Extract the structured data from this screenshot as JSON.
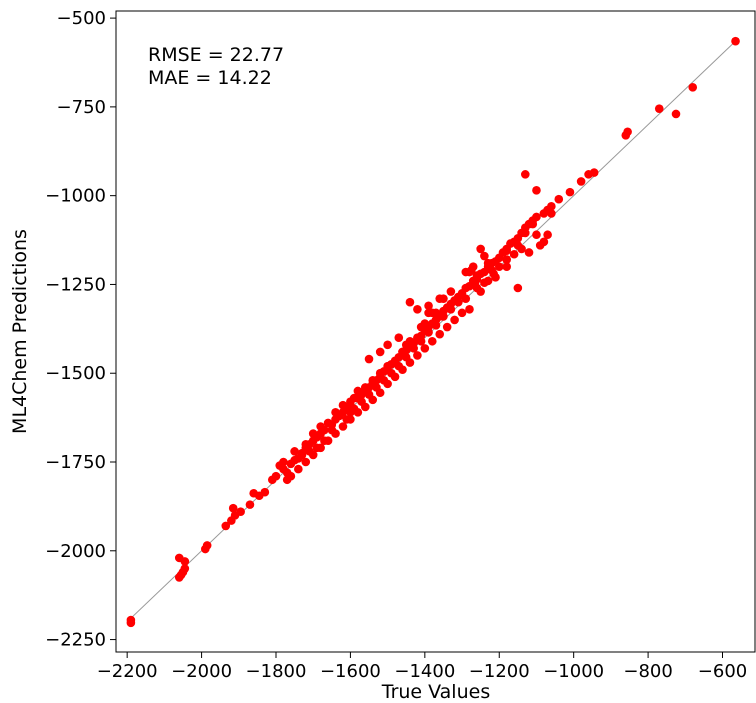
{
  "chart_data": {
    "type": "scatter",
    "title": "",
    "xlabel": "True Values",
    "ylabel": "ML4Chem Predictions",
    "xlim": [
      -2230,
      -510
    ],
    "ylim": [
      -2285,
      -480
    ],
    "x_ticks": [
      -2200,
      -2000,
      -1800,
      -1600,
      -1400,
      -1200,
      -1000,
      -800,
      -600
    ],
    "y_ticks": [
      -500,
      -750,
      -1000,
      -1250,
      -1500,
      -1750,
      -2000,
      -2250
    ],
    "x_tick_labels": [
      "−2200",
      "−2000",
      "−1800",
      "−1600",
      "−1400",
      "−1200",
      "−1000",
      "−800",
      "−600"
    ],
    "y_tick_labels": [
      "−500",
      "−750",
      "−1000",
      "−1250",
      "−1500",
      "−1750",
      "−2000",
      "−2250"
    ],
    "grid": false,
    "legend": "none",
    "marker_color": "#ff0000",
    "identity_line_color": "#999999",
    "annotations": [
      "RMSE = 22.77",
      "MAE = 14.22"
    ],
    "series": [
      {
        "points": [
          [
            -2190,
            -2195
          ],
          [
            -2190,
            -2203
          ],
          [
            -2060,
            -2020
          ],
          [
            -2045,
            -2030
          ],
          [
            -2060,
            -2075
          ],
          [
            -2050,
            -2060
          ],
          [
            -2045,
            -2050
          ],
          [
            -2055,
            -2068
          ],
          [
            -1985,
            -1985
          ],
          [
            -1990,
            -1995
          ],
          [
            -1935,
            -1930
          ],
          [
            -1920,
            -1915
          ],
          [
            -1910,
            -1900
          ],
          [
            -1915,
            -1880
          ],
          [
            -1895,
            -1890
          ],
          [
            -1870,
            -1870
          ],
          [
            -1860,
            -1838
          ],
          [
            -1845,
            -1845
          ],
          [
            -1830,
            -1835
          ],
          [
            -1810,
            -1800
          ],
          [
            -1800,
            -1790
          ],
          [
            -1790,
            -1760
          ],
          [
            -1780,
            -1770
          ],
          [
            -1770,
            -1780
          ],
          [
            -1760,
            -1755
          ],
          [
            -1750,
            -1745
          ],
          [
            -1740,
            -1740
          ],
          [
            -1730,
            -1725
          ],
          [
            -1720,
            -1710
          ],
          [
            -1710,
            -1700
          ],
          [
            -1700,
            -1690
          ],
          [
            -1690,
            -1680
          ],
          [
            -1680,
            -1670
          ],
          [
            -1670,
            -1660
          ],
          [
            -1660,
            -1640
          ],
          [
            -1650,
            -1645
          ],
          [
            -1640,
            -1630
          ],
          [
            -1630,
            -1620
          ],
          [
            -1620,
            -1610
          ],
          [
            -1610,
            -1600
          ],
          [
            -1600,
            -1590
          ],
          [
            -1590,
            -1570
          ],
          [
            -1580,
            -1570
          ],
          [
            -1570,
            -1560
          ],
          [
            -1560,
            -1545
          ],
          [
            -1550,
            -1540
          ],
          [
            -1540,
            -1530
          ],
          [
            -1530,
            -1520
          ],
          [
            -1520,
            -1510
          ],
          [
            -1510,
            -1495
          ],
          [
            -1500,
            -1490
          ],
          [
            -1490,
            -1475
          ],
          [
            -1480,
            -1465
          ],
          [
            -1470,
            -1455
          ],
          [
            -1460,
            -1440
          ],
          [
            -1450,
            -1435
          ],
          [
            -1440,
            -1425
          ],
          [
            -1430,
            -1415
          ],
          [
            -1420,
            -1405
          ],
          [
            -1410,
            -1395
          ],
          [
            -1400,
            -1380
          ],
          [
            -1390,
            -1370
          ],
          [
            -1380,
            -1360
          ],
          [
            -1370,
            -1350
          ],
          [
            -1360,
            -1340
          ],
          [
            -1350,
            -1325
          ],
          [
            -1340,
            -1315
          ],
          [
            -1330,
            -1305
          ],
          [
            -1320,
            -1295
          ],
          [
            -1310,
            -1285
          ],
          [
            -1300,
            -1275
          ],
          [
            -1290,
            -1260
          ],
          [
            -1280,
            -1255
          ],
          [
            -1270,
            -1240
          ],
          [
            -1260,
            -1235
          ],
          [
            -1250,
            -1220
          ],
          [
            -1240,
            -1215
          ],
          [
            -1230,
            -1200
          ],
          [
            -1220,
            -1190
          ],
          [
            -1210,
            -1185
          ],
          [
            -1200,
            -1175
          ],
          [
            -1190,
            -1160
          ],
          [
            -1180,
            -1150
          ],
          [
            -1170,
            -1135
          ],
          [
            -1160,
            -1130
          ],
          [
            -1150,
            -1120
          ],
          [
            -1140,
            -1105
          ],
          [
            -1130,
            -1090
          ],
          [
            -1120,
            -1080
          ],
          [
            -1110,
            -1070
          ],
          [
            -1100,
            -1060
          ],
          [
            -1080,
            -1050
          ],
          [
            -1060,
            -1030
          ],
          [
            -1040,
            -1010
          ],
          [
            -1010,
            -990
          ],
          [
            -980,
            -960
          ],
          [
            -960,
            -940
          ],
          [
            -945,
            -935
          ],
          [
            -1130,
            -940
          ],
          [
            -1100,
            -985
          ],
          [
            -1070,
            -1040
          ],
          [
            -1060,
            -1050
          ],
          [
            -1110,
            -1080
          ],
          [
            -1130,
            -1105
          ],
          [
            -1180,
            -1155
          ],
          [
            -1230,
            -1190
          ],
          [
            -1260,
            -1225
          ],
          [
            -1265,
            -1245
          ],
          [
            -1270,
            -1200
          ],
          [
            -1275,
            -1210
          ],
          [
            -1280,
            -1215
          ],
          [
            -1290,
            -1215
          ],
          [
            -1220,
            -1210
          ],
          [
            -1215,
            -1220
          ],
          [
            -1330,
            -1270
          ],
          [
            -1350,
            -1290
          ],
          [
            -1360,
            -1290
          ],
          [
            -1370,
            -1330
          ],
          [
            -1380,
            -1330
          ],
          [
            -1390,
            -1330
          ],
          [
            -1400,
            -1360
          ],
          [
            -1410,
            -1370
          ],
          [
            -1420,
            -1400
          ],
          [
            -1440,
            -1410
          ],
          [
            -1450,
            -1420
          ],
          [
            -1460,
            -1440
          ],
          [
            -1480,
            -1470
          ],
          [
            -1500,
            -1480
          ],
          [
            -1520,
            -1500
          ],
          [
            -1540,
            -1520
          ],
          [
            -1560,
            -1540
          ],
          [
            -1580,
            -1550
          ],
          [
            -1600,
            -1580
          ],
          [
            -1620,
            -1590
          ],
          [
            -1640,
            -1610
          ],
          [
            -1680,
            -1650
          ],
          [
            -1700,
            -1670
          ],
          [
            -1720,
            -1700
          ],
          [
            -1750,
            -1720
          ],
          [
            -1780,
            -1750
          ],
          [
            -1280,
            -1320
          ],
          [
            -1300,
            -1330
          ],
          [
            -1320,
            -1350
          ],
          [
            -1340,
            -1370
          ],
          [
            -1360,
            -1390
          ],
          [
            -1380,
            -1410
          ],
          [
            -1400,
            -1430
          ],
          [
            -1420,
            -1450
          ],
          [
            -1440,
            -1470
          ],
          [
            -1460,
            -1490
          ],
          [
            -1480,
            -1510
          ],
          [
            -1500,
            -1530
          ],
          [
            -1520,
            -1555
          ],
          [
            -1540,
            -1575
          ],
          [
            -1560,
            -1595
          ],
          [
            -1580,
            -1610
          ],
          [
            -1600,
            -1630
          ],
          [
            -1620,
            -1650
          ],
          [
            -1640,
            -1670
          ],
          [
            -1660,
            -1690
          ],
          [
            -1680,
            -1710
          ],
          [
            -1700,
            -1730
          ],
          [
            -1720,
            -1750
          ],
          [
            -1740,
            -1770
          ],
          [
            -1760,
            -1790
          ],
          [
            -1770,
            -1800
          ],
          [
            -1150,
            -1260
          ],
          [
            -1180,
            -1200
          ],
          [
            -1250,
            -1270
          ],
          [
            -1440,
            -1300
          ],
          [
            -1420,
            -1320
          ],
          [
            -1390,
            -1310
          ],
          [
            -1500,
            -1420
          ],
          [
            -1520,
            -1440
          ],
          [
            -1550,
            -1460
          ],
          [
            -1470,
            -1400
          ],
          [
            -1250,
            -1150
          ],
          [
            -1240,
            -1170
          ],
          [
            -1120,
            -1160
          ],
          [
            -1100,
            -1110
          ],
          [
            -1150,
            -1140
          ],
          [
            -860,
            -830
          ],
          [
            -855,
            -820
          ],
          [
            -770,
            -755
          ],
          [
            -725,
            -770
          ],
          [
            -680,
            -695
          ],
          [
            -565,
            -565
          ],
          [
            -1070,
            -1110
          ],
          [
            -1080,
            -1130
          ],
          [
            -1090,
            -1140
          ],
          [
            -1600,
            -1610
          ],
          [
            -1610,
            -1630
          ],
          [
            -1630,
            -1620
          ],
          [
            -1650,
            -1660
          ],
          [
            -1670,
            -1690
          ],
          [
            -1690,
            -1710
          ],
          [
            -1710,
            -1720
          ],
          [
            -1730,
            -1730
          ],
          [
            -1310,
            -1300
          ],
          [
            -1330,
            -1320
          ],
          [
            -1350,
            -1340
          ],
          [
            -1370,
            -1365
          ],
          [
            -1390,
            -1385
          ],
          [
            -1410,
            -1410
          ],
          [
            -1430,
            -1430
          ],
          [
            -1450,
            -1455
          ],
          [
            -1470,
            -1480
          ],
          [
            -1490,
            -1500
          ],
          [
            -1510,
            -1520
          ],
          [
            -1530,
            -1540
          ],
          [
            -1550,
            -1560
          ],
          [
            -1570,
            -1580
          ],
          [
            -1590,
            -1600
          ],
          [
            -1260,
            -1260
          ],
          [
            -1240,
            -1245
          ],
          [
            -1200,
            -1200
          ],
          [
            -1180,
            -1180
          ],
          [
            -1160,
            -1165
          ],
          [
            -1140,
            -1150
          ],
          [
            -1290,
            -1290
          ],
          [
            -1230,
            -1240
          ],
          [
            -1210,
            -1230
          ]
        ]
      }
    ]
  }
}
